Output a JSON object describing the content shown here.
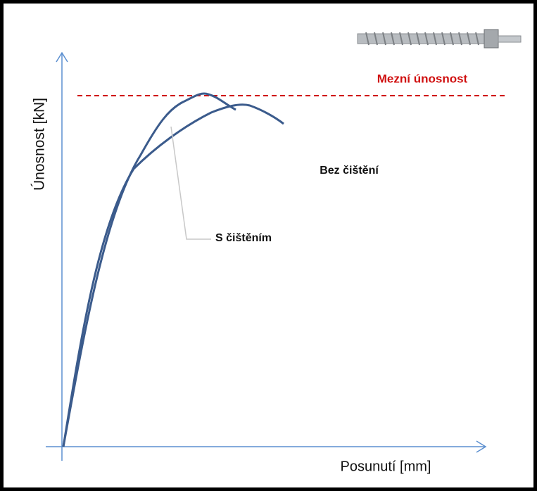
{
  "axes": {
    "y_label": "Únosnost [kN]",
    "x_label": "Posunutí [mm]"
  },
  "annotations": {
    "limit": "Mezní únosnost",
    "without_cleaning": "Bez čištění",
    "with_cleaning": "S čištěním"
  }
}
